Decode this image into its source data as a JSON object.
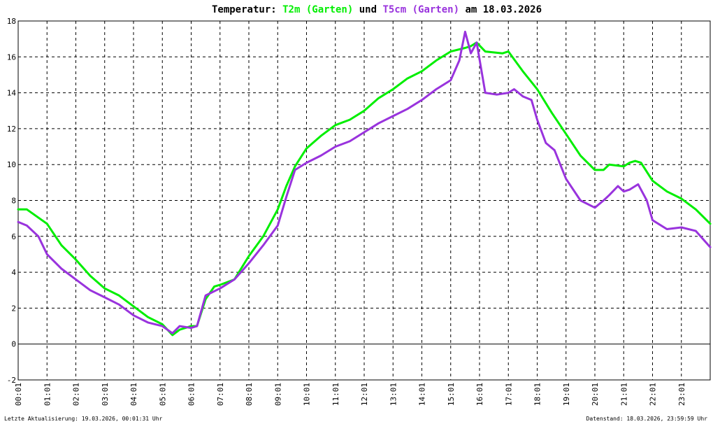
{
  "chart_data": {
    "type": "line",
    "title": {
      "prefix": "Temperatur: ",
      "series1": "T2m (Garten)",
      "middle": " und ",
      "series2": "T5cm (Garten)",
      "suffix": " am 18.03.2026"
    },
    "xlabel": "",
    "ylabel": "",
    "x_ticks": [
      "00:01",
      "01:01",
      "02:01",
      "03:01",
      "04:01",
      "05:01",
      "06:01",
      "07:01",
      "08:01",
      "09:01",
      "10:01",
      "11:01",
      "12:01",
      "13:01",
      "14:01",
      "15:01",
      "16:01",
      "17:01",
      "18:01",
      "19:01",
      "20:01",
      "21:01",
      "22:01",
      "23:01"
    ],
    "y_ticks": [
      "18",
      "16",
      "14",
      "12",
      "10",
      "8",
      "6",
      "4",
      "2",
      "0",
      "-2"
    ],
    "xlim": [
      0,
      24
    ],
    "ylim": [
      -2,
      18
    ],
    "grid": true,
    "series": [
      {
        "name": "T2m (Garten)",
        "color": "#00ee00",
        "x": [
          0,
          0.3,
          1,
          1.5,
          2,
          2.5,
          3,
          3.5,
          4,
          4.5,
          5,
          5.35,
          5.6,
          6,
          6.2,
          6.5,
          6.8,
          7,
          7.5,
          8,
          8.5,
          9,
          9.3,
          9.6,
          10,
          10.5,
          11,
          11.5,
          12,
          12.5,
          13,
          13.5,
          14,
          14.5,
          15,
          15.5,
          15.7,
          15.9,
          16.2,
          16.8,
          17,
          17.5,
          18,
          18.5,
          19,
          19.5,
          20,
          20.3,
          20.5,
          21,
          21.2,
          21.4,
          21.6,
          22,
          22.5,
          23,
          23.5,
          24
        ],
        "y": [
          7.5,
          7.5,
          6.7,
          5.5,
          4.7,
          3.8,
          3.1,
          2.7,
          2.1,
          1.5,
          1.1,
          0.5,
          0.8,
          1.0,
          1.0,
          2.5,
          3.2,
          3.3,
          3.6,
          4.9,
          6.0,
          7.5,
          8.8,
          9.9,
          10.9,
          11.6,
          12.2,
          12.5,
          13.0,
          13.7,
          14.2,
          14.8,
          15.2,
          15.8,
          16.3,
          16.5,
          16.6,
          16.8,
          16.3,
          16.2,
          16.3,
          15.2,
          14.2,
          12.9,
          11.7,
          10.5,
          9.7,
          9.7,
          10.0,
          9.9,
          10.1,
          10.2,
          10.1,
          9.1,
          8.5,
          8.1,
          7.5,
          6.7
        ]
      },
      {
        "name": "T5cm (Garten)",
        "color": "#9933dd",
        "x": [
          0,
          0.3,
          0.7,
          1,
          1.5,
          2,
          2.5,
          3,
          3.5,
          4,
          4.5,
          5,
          5.35,
          5.6,
          6,
          6.2,
          6.5,
          7,
          7.5,
          8,
          8.5,
          9,
          9.3,
          9.6,
          10,
          10.5,
          11,
          11.5,
          12,
          12.5,
          13,
          13.5,
          14,
          14.5,
          15,
          15.3,
          15.5,
          15.7,
          15.9,
          16.2,
          16.6,
          17,
          17.2,
          17.5,
          17.8,
          18,
          18.3,
          18.6,
          19,
          19.5,
          20,
          20.3,
          20.5,
          20.8,
          21,
          21.2,
          21.5,
          21.8,
          22,
          22.5,
          23,
          23.5,
          24
        ],
        "y": [
          6.8,
          6.6,
          6.0,
          5.0,
          4.2,
          3.6,
          3.0,
          2.6,
          2.2,
          1.6,
          1.2,
          1.0,
          0.6,
          1.0,
          0.9,
          1.0,
          2.7,
          3.1,
          3.6,
          4.5,
          5.5,
          6.6,
          8.2,
          9.7,
          10.1,
          10.5,
          11.0,
          11.3,
          11.8,
          12.3,
          12.7,
          13.1,
          13.6,
          14.2,
          14.7,
          15.8,
          17.4,
          16.2,
          16.8,
          14.0,
          13.9,
          14.0,
          14.2,
          13.8,
          13.6,
          12.5,
          11.2,
          10.8,
          9.2,
          8.0,
          7.6,
          8.0,
          8.3,
          8.8,
          8.5,
          8.6,
          8.9,
          8.0,
          6.9,
          6.4,
          6.5,
          6.3,
          5.4
        ]
      }
    ],
    "footer": {
      "left": "Letzte Aktualisierung: 19.03.2026, 00:01:31 Uhr",
      "right": "Datenstand: 18.03.2026, 23:59:59 Uhr"
    },
    "colors": {
      "background": "#ffffff",
      "grid": "#000000",
      "axis": "#000000",
      "t2m": "#00ee00",
      "t5cm": "#9933dd"
    }
  }
}
